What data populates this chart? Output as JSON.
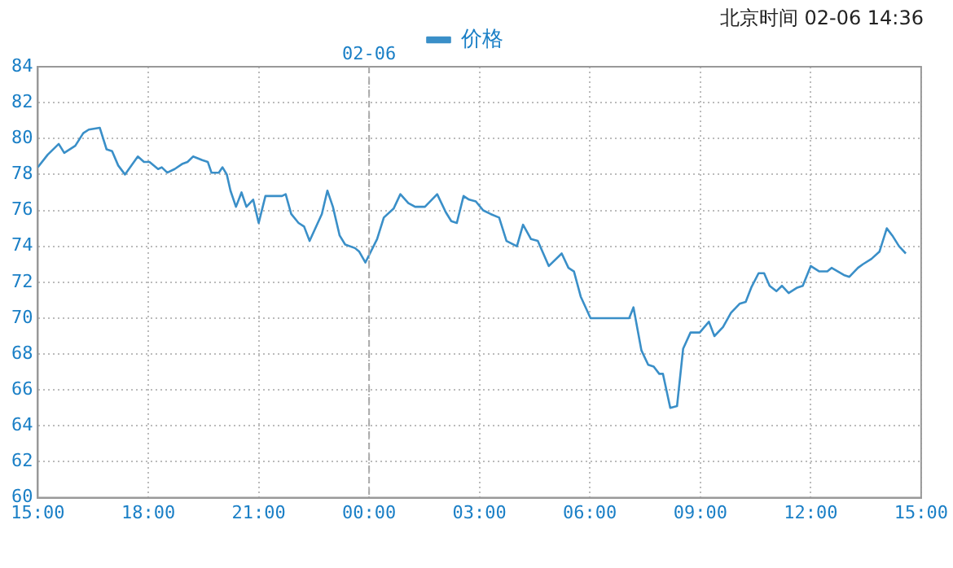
{
  "chart_data": {
    "type": "line",
    "annotations": [
      "北京时间 02-06 14:36"
    ],
    "legend": "top",
    "grid": true,
    "marker": "none",
    "line_style": "solid",
    "xlim": [
      "--02-05T15:00",
      "--02-06T15:00"
    ],
    "xticks": [
      {
        "value": "--02-05T15:00",
        "label": "15:00"
      },
      {
        "value": "--02-05T18:00",
        "label": "18:00"
      },
      {
        "value": "--02-05T21:00",
        "label": "21:00"
      },
      {
        "value": "--02-06T00:00",
        "label": "00:00"
      },
      {
        "value": "--02-06T03:00",
        "label": "03:00"
      },
      {
        "value": "--02-06T06:00",
        "label": "06:00"
      },
      {
        "value": "--02-06T09:00",
        "label": "09:00"
      },
      {
        "value": "--02-06T12:00",
        "label": "12:00"
      },
      {
        "value": "--02-06T15:00",
        "label": "15:00"
      }
    ],
    "ylim": [
      60,
      84
    ],
    "yticks": [
      60,
      62,
      64,
      66,
      68,
      70,
      72,
      74,
      76,
      78,
      80,
      82,
      84
    ],
    "ref_lines": [
      {
        "axis": "x",
        "value": "--02-06T00:00",
        "label": "02-06",
        "line_style": "dashed",
        "color": "#aaaaaa"
      }
    ],
    "series": [
      {
        "name": "价格",
        "color": "#3a8fc8",
        "x": [
          "--02-05T15:00",
          "--02-05T15:16",
          "--02-05T15:34",
          "--02-05T15:43",
          "--02-05T16:01",
          "--02-05T16:14",
          "--02-05T16:23",
          "--02-05T16:41",
          "--02-05T16:52",
          "--02-05T17:01",
          "--02-05T17:11",
          "--02-05T17:22",
          "--02-05T17:43",
          "--02-05T17:53",
          "--02-05T18:02",
          "--02-05T18:16",
          "--02-05T18:22",
          "--02-05T18:31",
          "--02-05T18:43",
          "--02-05T18:56",
          "--02-05T19:04",
          "--02-05T19:13",
          "--02-05T19:28",
          "--02-05T19:37",
          "--02-05T19:43",
          "--02-05T19:55",
          "--02-05T20:01",
          "--02-05T20:08",
          "--02-05T20:14",
          "--02-05T20:23",
          "--02-05T20:32",
          "--02-05T20:40",
          "--02-05T20:51",
          "--02-05T21:00",
          "--02-05T21:11",
          "--02-05T21:20",
          "--02-05T21:38",
          "--02-05T21:44",
          "--02-05T21:53",
          "--02-05T22:05",
          "--02-05T22:14",
          "--02-05T22:23",
          "--02-05T22:43",
          "--02-05T22:52",
          "--02-05T23:01",
          "--02-05T23:12",
          "--02-05T23:21",
          "--02-05T23:37",
          "--02-05T23:44",
          "--02-05T23:54",
          "--02-06T00:13",
          "--02-06T00:24",
          "--02-06T00:40",
          "--02-06T00:51",
          "--02-06T01:04",
          "--02-06T01:15",
          "--02-06T01:31",
          "--02-06T01:51",
          "--02-06T02:05",
          "--02-06T02:14",
          "--02-06T02:23",
          "--02-06T02:34",
          "--02-06T02:43",
          "--02-06T02:54",
          "--02-06T03:06",
          "--02-06T03:18",
          "--02-06T03:32",
          "--02-06T03:44",
          "--02-06T04:01",
          "--02-06T04:11",
          "--02-06T04:24",
          "--02-06T04:35",
          "--02-06T04:53",
          "--02-06T05:14",
          "--02-06T05:25",
          "--02-06T05:34",
          "--02-06T05:45",
          "--02-06T06:01",
          "--02-06T07:04",
          "--02-06T07:11",
          "--02-06T07:24",
          "--02-06T07:35",
          "--02-06T07:44",
          "--02-06T07:53",
          "--02-06T07:59",
          "--02-06T08:11",
          "--02-06T08:22",
          "--02-06T08:32",
          "--02-06T08:44",
          "--02-06T08:59",
          "--02-06T09:14",
          "--02-06T09:23",
          "--02-06T09:37",
          "--02-06T09:50",
          "--02-06T10:04",
          "--02-06T10:14",
          "--02-06T10:23",
          "--02-06T10:35",
          "--02-06T10:44",
          "--02-06T10:53",
          "--02-06T11:04",
          "--02-06T11:13",
          "--02-06T11:24",
          "--02-06T11:38",
          "--02-06T11:47",
          "--02-06T12:00",
          "--02-06T12:14",
          "--02-06T12:27",
          "--02-06T12:34",
          "--02-06T12:54",
          "--02-06T13:03",
          "--02-06T13:17",
          "--02-06T13:25",
          "--02-06T13:39",
          "--02-06T13:52",
          "--02-06T14:04",
          "--02-06T14:13",
          "--02-06T14:24",
          "--02-06T14:35"
        ],
        "values": [
          78.4,
          79.1,
          79.7,
          79.2,
          79.6,
          80.3,
          80.5,
          80.6,
          79.4,
          79.3,
          78.5,
          78.0,
          79.0,
          78.7,
          78.7,
          78.3,
          78.4,
          78.1,
          78.3,
          78.6,
          78.7,
          79.0,
          78.8,
          78.7,
          78.1,
          78.1,
          78.4,
          78.0,
          77.1,
          76.2,
          77.0,
          76.2,
          76.6,
          75.3,
          76.8,
          76.8,
          76.8,
          76.9,
          75.8,
          75.3,
          75.1,
          74.3,
          75.8,
          77.1,
          76.2,
          74.6,
          74.1,
          73.9,
          73.7,
          73.1,
          74.4,
          75.6,
          76.1,
          76.9,
          76.4,
          76.2,
          76.2,
          76.9,
          75.9,
          75.4,
          75.3,
          76.8,
          76.6,
          76.5,
          76.0,
          75.8,
          75.6,
          74.3,
          74.0,
          75.2,
          74.4,
          74.3,
          72.9,
          73.6,
          72.8,
          72.6,
          71.2,
          70.0,
          70.0,
          70.6,
          68.2,
          67.4,
          67.3,
          66.9,
          66.9,
          65.0,
          65.1,
          68.3,
          69.2,
          69.2,
          69.8,
          69.0,
          69.5,
          70.3,
          70.8,
          70.9,
          71.7,
          72.5,
          72.5,
          71.8,
          71.5,
          71.8,
          71.4,
          71.7,
          71.8,
          72.9,
          72.6,
          72.6,
          72.8,
          72.4,
          72.3,
          72.8,
          73.0,
          73.3,
          73.7,
          75.0,
          74.6,
          74.0,
          73.6
        ]
      }
    ]
  }
}
